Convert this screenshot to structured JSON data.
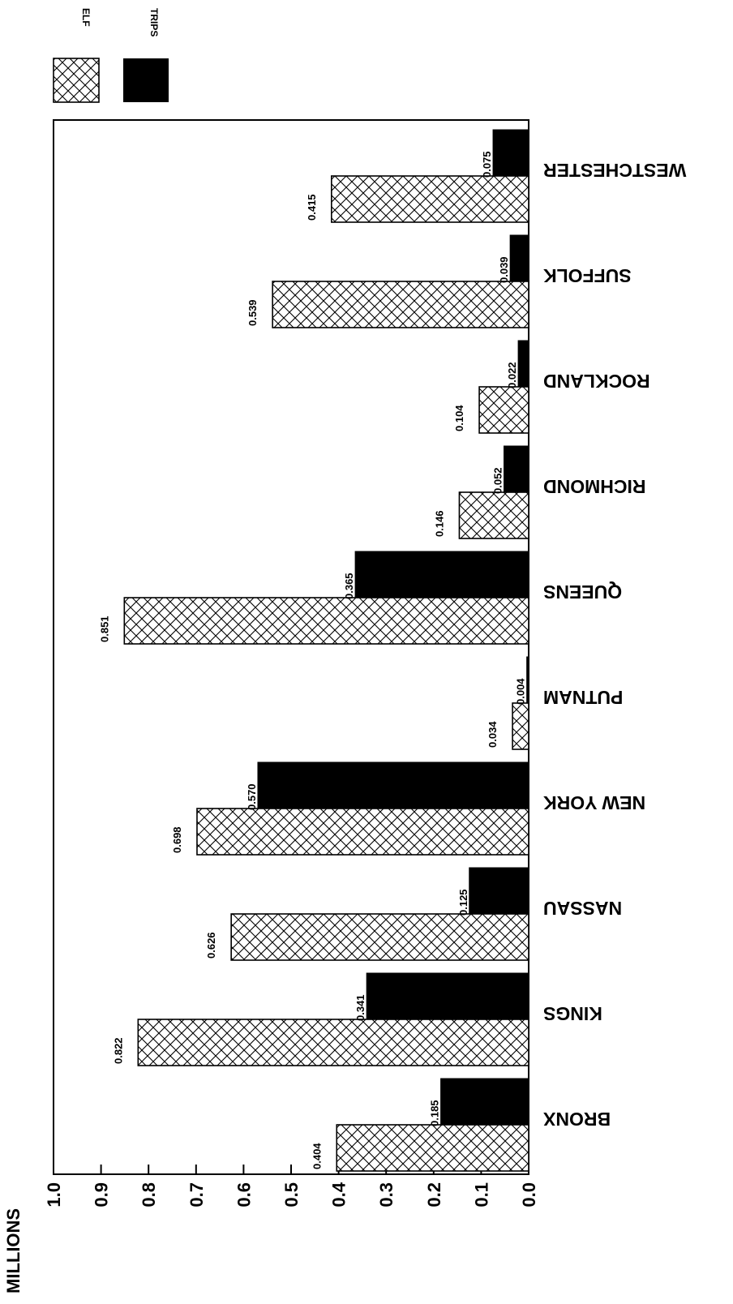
{
  "chart_data": {
    "type": "bar",
    "orientation": "horizontal",
    "ylabel": "MILLIONS",
    "ylim": [
      0.0,
      1.0
    ],
    "ticks": [
      "0.0",
      "0.1",
      "0.2",
      "0.3",
      "0.4",
      "0.5",
      "0.6",
      "0.7",
      "0.8",
      "0.9",
      "1.0"
    ],
    "grid": false,
    "legend_position": "top-left",
    "categories": [
      "BRONX",
      "KINGS",
      "NASSAU",
      "NEW YORK",
      "PUTNAM",
      "QUEENS",
      "RICHMOND",
      "ROCKLAND",
      "SUFFOLK",
      "WESTCHESTER"
    ],
    "series": [
      {
        "name": "ELF",
        "pattern": "crosshatch",
        "values": [
          0.404,
          0.822,
          0.626,
          0.698,
          0.034,
          0.851,
          0.146,
          0.104,
          0.539,
          0.415
        ],
        "labels": [
          "0.404",
          "0.822",
          "0.626",
          "0.698",
          "0.034",
          "0.851",
          "0.146",
          "0.104",
          "0.539",
          "0.415"
        ]
      },
      {
        "name": "TRIPS",
        "pattern": "solid",
        "values": [
          0.185,
          0.341,
          0.125,
          0.57,
          0.004,
          0.365,
          0.052,
          0.022,
          0.039,
          0.075
        ],
        "labels": [
          "0.185",
          "0.341",
          "0.125",
          "0.570",
          "0.004",
          "0.365",
          "0.052",
          "0.022",
          "0.039",
          "0.075"
        ]
      }
    ],
    "colors": {
      "ink": "#000000",
      "background": "#ffffff"
    }
  }
}
